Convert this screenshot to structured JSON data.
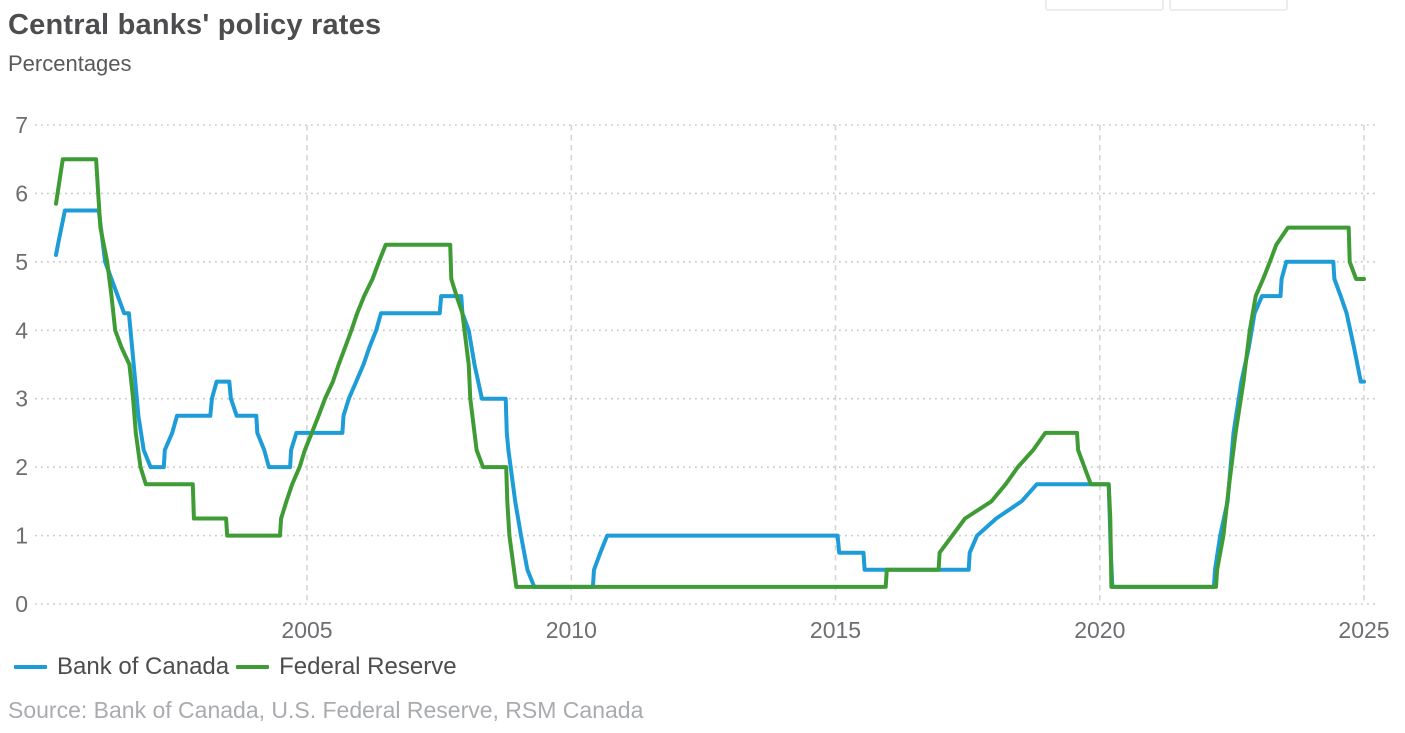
{
  "header": {
    "title": "Central banks' policy rates",
    "subtitle": "Percentages"
  },
  "legend": {
    "items": [
      {
        "label": "Bank of Canada",
        "color": "#1d9cd8"
      },
      {
        "label": "Federal Reserve",
        "color": "#3f9c35"
      }
    ]
  },
  "source": "Source: Bank of Canada, U.S. Federal Reserve, RSM Canada",
  "colors": {
    "bank_of_canada_line": "#1d9cd8",
    "federal_reserve_line": "#3f9c35",
    "gridline_dotted": "#c9cacc",
    "gridline_dashed": "#d5d6d8",
    "axis_text": "#6d6e71",
    "title_text": "#4d4d4f",
    "source_text": "#a9abae"
  },
  "chart_data": {
    "type": "line",
    "title": "Central banks' policy rates",
    "ylabel": "Percentages",
    "xlabel": "",
    "xlim": [
      2000.2,
      2025.4
    ],
    "ylim": [
      0,
      7
    ],
    "x_ticks": [
      2005,
      2010,
      2015,
      2020,
      2025
    ],
    "y_ticks": [
      0,
      1,
      2,
      3,
      4,
      5,
      6,
      7
    ],
    "grid": "horizontal dotted lines at each integer, vertical dashed lines at each 5-year tick",
    "legend_position": "bottom-left",
    "series": [
      {
        "name": "Bank of Canada",
        "color": "#1d9cd8",
        "points": [
          [
            2000.25,
            5.1
          ],
          [
            2000.3,
            5.3
          ],
          [
            2000.42,
            5.75
          ],
          [
            2001.06,
            5.75
          ],
          [
            2001.1,
            5.5
          ],
          [
            2001.18,
            5.0
          ],
          [
            2001.3,
            4.75
          ],
          [
            2001.42,
            4.5
          ],
          [
            2001.54,
            4.25
          ],
          [
            2001.63,
            4.25
          ],
          [
            2001.66,
            4.0
          ],
          [
            2001.72,
            3.5
          ],
          [
            2001.81,
            2.75
          ],
          [
            2001.91,
            2.25
          ],
          [
            2002.04,
            2.0
          ],
          [
            2002.29,
            2.0
          ],
          [
            2002.31,
            2.25
          ],
          [
            2002.45,
            2.5
          ],
          [
            2002.54,
            2.75
          ],
          [
            2003.17,
            2.75
          ],
          [
            2003.2,
            3.0
          ],
          [
            2003.29,
            3.25
          ],
          [
            2003.53,
            3.25
          ],
          [
            2003.56,
            3.0
          ],
          [
            2003.67,
            2.75
          ],
          [
            2004.04,
            2.75
          ],
          [
            2004.06,
            2.5
          ],
          [
            2004.19,
            2.25
          ],
          [
            2004.28,
            2.0
          ],
          [
            2004.68,
            2.0
          ],
          [
            2004.7,
            2.25
          ],
          [
            2004.8,
            2.5
          ],
          [
            2005.67,
            2.5
          ],
          [
            2005.69,
            2.75
          ],
          [
            2005.79,
            3.0
          ],
          [
            2005.93,
            3.25
          ],
          [
            2006.07,
            3.5
          ],
          [
            2006.18,
            3.75
          ],
          [
            2006.31,
            4.0
          ],
          [
            2006.4,
            4.25
          ],
          [
            2007.51,
            4.25
          ],
          [
            2007.54,
            4.5
          ],
          [
            2007.92,
            4.5
          ],
          [
            2007.94,
            4.25
          ],
          [
            2008.06,
            4.0
          ],
          [
            2008.17,
            3.5
          ],
          [
            2008.31,
            3.0
          ],
          [
            2008.76,
            3.0
          ],
          [
            2008.78,
            2.5
          ],
          [
            2008.81,
            2.25
          ],
          [
            2008.94,
            1.5
          ],
          [
            2009.05,
            1.0
          ],
          [
            2009.17,
            0.5
          ],
          [
            2009.3,
            0.25
          ],
          [
            2010.41,
            0.25
          ],
          [
            2010.43,
            0.5
          ],
          [
            2010.55,
            0.75
          ],
          [
            2010.68,
            1.0
          ],
          [
            2015.04,
            1.0
          ],
          [
            2015.07,
            0.75
          ],
          [
            2015.53,
            0.75
          ],
          [
            2015.55,
            0.5
          ],
          [
            2017.52,
            0.5
          ],
          [
            2017.54,
            0.75
          ],
          [
            2017.68,
            1.0
          ],
          [
            2018.04,
            1.25
          ],
          [
            2018.52,
            1.5
          ],
          [
            2018.81,
            1.75
          ],
          [
            2020.17,
            1.75
          ],
          [
            2020.19,
            1.25
          ],
          [
            2020.21,
            0.75
          ],
          [
            2020.24,
            0.25
          ],
          [
            2022.16,
            0.25
          ],
          [
            2022.18,
            0.5
          ],
          [
            2022.28,
            1.0
          ],
          [
            2022.42,
            1.5
          ],
          [
            2022.53,
            2.5
          ],
          [
            2022.68,
            3.25
          ],
          [
            2022.82,
            3.75
          ],
          [
            2022.93,
            4.25
          ],
          [
            2023.07,
            4.5
          ],
          [
            2023.42,
            4.5
          ],
          [
            2023.44,
            4.75
          ],
          [
            2023.53,
            5.0
          ],
          [
            2024.42,
            5.0
          ],
          [
            2024.44,
            4.75
          ],
          [
            2024.56,
            4.5
          ],
          [
            2024.67,
            4.25
          ],
          [
            2024.81,
            3.75
          ],
          [
            2024.94,
            3.25
          ],
          [
            2025.0,
            3.25
          ]
        ]
      },
      {
        "name": "Federal Reserve",
        "color": "#3f9c35",
        "points": [
          [
            2000.25,
            5.85
          ],
          [
            2000.3,
            6.1
          ],
          [
            2000.38,
            6.5
          ],
          [
            2001.01,
            6.5
          ],
          [
            2001.05,
            6.0
          ],
          [
            2001.09,
            5.5
          ],
          [
            2001.22,
            5.0
          ],
          [
            2001.3,
            4.5
          ],
          [
            2001.37,
            4.0
          ],
          [
            2001.49,
            3.75
          ],
          [
            2001.64,
            3.5
          ],
          [
            2001.71,
            3.0
          ],
          [
            2001.76,
            2.5
          ],
          [
            2001.85,
            2.0
          ],
          [
            2001.95,
            1.75
          ],
          [
            2002.84,
            1.75
          ],
          [
            2002.86,
            1.25
          ],
          [
            2003.47,
            1.25
          ],
          [
            2003.49,
            1.0
          ],
          [
            2004.49,
            1.0
          ],
          [
            2004.51,
            1.25
          ],
          [
            2004.61,
            1.5
          ],
          [
            2004.72,
            1.75
          ],
          [
            2004.86,
            2.0
          ],
          [
            2004.96,
            2.25
          ],
          [
            2005.09,
            2.5
          ],
          [
            2005.22,
            2.75
          ],
          [
            2005.34,
            3.0
          ],
          [
            2005.49,
            3.25
          ],
          [
            2005.6,
            3.5
          ],
          [
            2005.72,
            3.75
          ],
          [
            2005.84,
            4.0
          ],
          [
            2005.95,
            4.25
          ],
          [
            2006.08,
            4.5
          ],
          [
            2006.24,
            4.75
          ],
          [
            2006.36,
            5.0
          ],
          [
            2006.49,
            5.25
          ],
          [
            2007.71,
            5.25
          ],
          [
            2007.73,
            4.75
          ],
          [
            2007.83,
            4.5
          ],
          [
            2007.94,
            4.25
          ],
          [
            2008.06,
            3.5
          ],
          [
            2008.09,
            3.0
          ],
          [
            2008.21,
            2.25
          ],
          [
            2008.33,
            2.0
          ],
          [
            2008.77,
            2.0
          ],
          [
            2008.79,
            1.5
          ],
          [
            2008.83,
            1.0
          ],
          [
            2008.96,
            0.25
          ],
          [
            2015.95,
            0.25
          ],
          [
            2015.97,
            0.5
          ],
          [
            2016.95,
            0.5
          ],
          [
            2016.97,
            0.75
          ],
          [
            2017.21,
            1.0
          ],
          [
            2017.45,
            1.25
          ],
          [
            2017.95,
            1.5
          ],
          [
            2018.22,
            1.75
          ],
          [
            2018.45,
            2.0
          ],
          [
            2018.74,
            2.25
          ],
          [
            2018.97,
            2.5
          ],
          [
            2019.57,
            2.5
          ],
          [
            2019.59,
            2.25
          ],
          [
            2019.71,
            2.0
          ],
          [
            2019.83,
            1.75
          ],
          [
            2020.17,
            1.75
          ],
          [
            2020.2,
            1.25
          ],
          [
            2020.22,
            0.25
          ],
          [
            2022.2,
            0.25
          ],
          [
            2022.22,
            0.5
          ],
          [
            2022.34,
            1.0
          ],
          [
            2022.45,
            1.75
          ],
          [
            2022.57,
            2.5
          ],
          [
            2022.72,
            3.25
          ],
          [
            2022.84,
            4.0
          ],
          [
            2022.95,
            4.5
          ],
          [
            2023.09,
            4.75
          ],
          [
            2023.22,
            5.0
          ],
          [
            2023.34,
            5.25
          ],
          [
            2023.56,
            5.5
          ],
          [
            2024.71,
            5.5
          ],
          [
            2024.73,
            5.0
          ],
          [
            2024.85,
            4.75
          ],
          [
            2025.0,
            4.75
          ]
        ]
      }
    ]
  }
}
